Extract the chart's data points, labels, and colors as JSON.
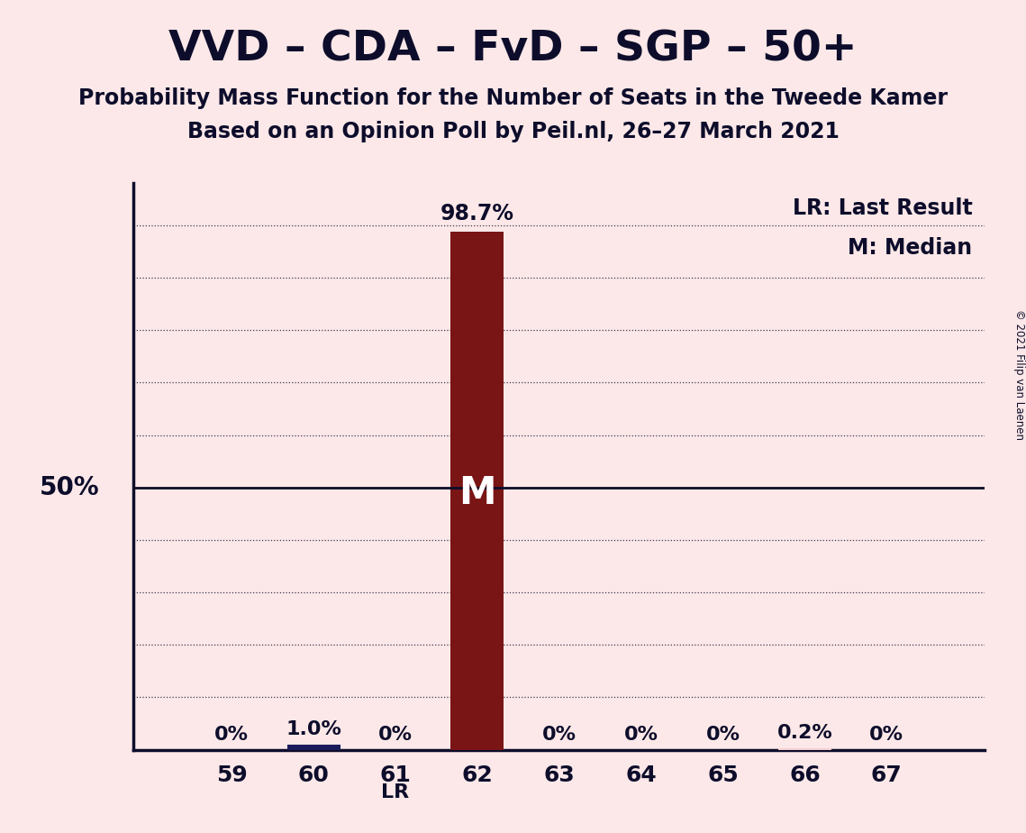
{
  "title": "VVD – CDA – FvD – SGP – 50+",
  "subtitle1": "Probability Mass Function for the Number of Seats in the Tweede Kamer",
  "subtitle2": "Based on an Opinion Poll by Peil.nl, 26–27 March 2021",
  "copyright": "© 2021 Filip van Laenen",
  "seats": [
    59,
    60,
    61,
    62,
    63,
    64,
    65,
    66,
    67
  ],
  "probabilities": [
    0.0,
    1.0,
    0.0,
    98.7,
    0.0,
    0.0,
    0.0,
    0.2,
    0.0
  ],
  "bar_colors": [
    "#f5d0d0",
    "#1c1c5c",
    "#f5d0d0",
    "#7a1515",
    "#f5d0d0",
    "#f5d0d0",
    "#f5d0d0",
    "#f5d0d0",
    "#f5d0d0"
  ],
  "median_seat": 62,
  "lr_seat": 61,
  "background_color": "#fce8e8",
  "text_color": "#0d0d2b",
  "ylim_max": 108,
  "bar_width": 0.65,
  "legend_lr": "LR: Last Result",
  "legend_m": "M: Median",
  "prob_labels": [
    "0%",
    "1.0%",
    "0%",
    "98.7%",
    "0%",
    "0%",
    "0%",
    "0.2%",
    "0%"
  ]
}
